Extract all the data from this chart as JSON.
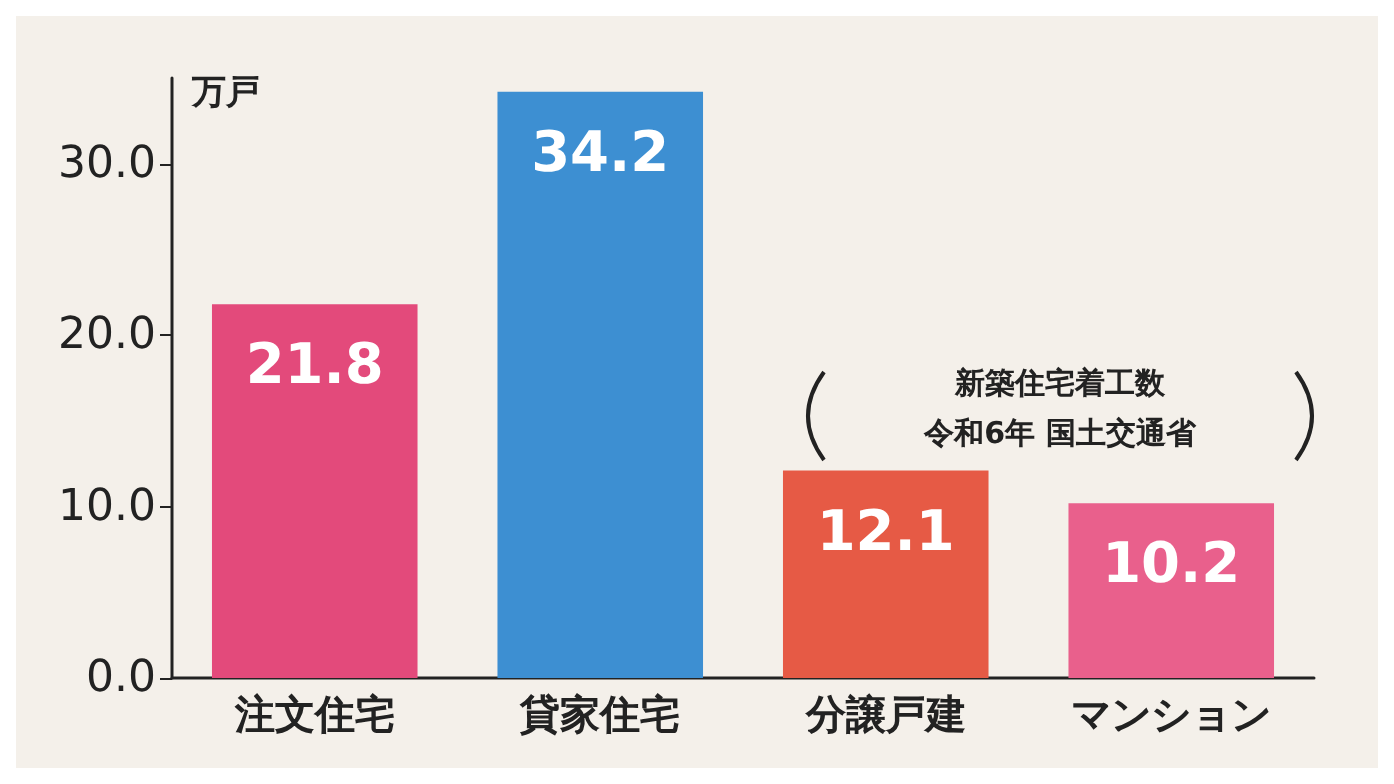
{
  "chart_data": {
    "type": "bar",
    "ylabel": "万戸",
    "categories": [
      "注文住宅",
      "貸家住宅",
      "分譲戸建",
      "マンション"
    ],
    "values": [
      21.8,
      34.2,
      12.1,
      10.2
    ],
    "colors": [
      "#e34a7b",
      "#3d8fd2",
      "#e65a45",
      "#e9608c"
    ],
    "ylim": [
      0,
      35
    ],
    "yticks": [
      {
        "value": 0,
        "label": "0.0"
      },
      {
        "value": 10,
        "label": "10.0"
      },
      {
        "value": 20,
        "label": "20.0"
      },
      {
        "value": 30,
        "label": "30.0"
      }
    ],
    "data_labels": true,
    "grid": false,
    "annotations": [
      "新築住宅着工数",
      "令和6年 国土交通省"
    ]
  }
}
